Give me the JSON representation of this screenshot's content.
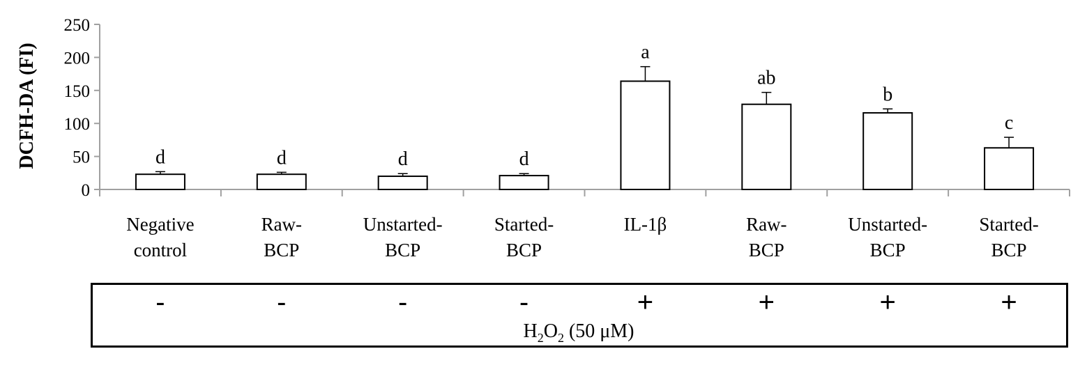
{
  "chart_data": {
    "type": "bar",
    "ylabel": "DCFH-DA (FI)",
    "ylim": [
      0,
      250
    ],
    "yticks": [
      "0",
      "50",
      "100",
      "150",
      "200",
      "250"
    ],
    "categories": [
      [
        "Negative",
        "control"
      ],
      [
        "Raw-",
        "BCP"
      ],
      [
        "Unstarted-",
        "BCP"
      ],
      [
        "Started-",
        "BCP"
      ],
      [
        "IL-1β",
        ""
      ],
      [
        "Raw-",
        "BCP"
      ],
      [
        "Unstarted-",
        "BCP"
      ],
      [
        "Started-",
        "BCP"
      ]
    ],
    "values": [
      23,
      23,
      20,
      21,
      164,
      129,
      116,
      63
    ],
    "errors": [
      4,
      3,
      4,
      3,
      22,
      18,
      6,
      16
    ],
    "significance": [
      "d",
      "d",
      "d",
      "d",
      "a",
      "ab",
      "b",
      "c"
    ],
    "treatment": {
      "signs": [
        "-",
        "-",
        "-",
        "-",
        "+",
        "+",
        "+",
        "+"
      ],
      "label_main": "H",
      "label_sub1": "2",
      "label_mid": "O",
      "label_sub2": "2",
      "label_rest": " (50 μM)"
    },
    "grid": false,
    "legend": "none",
    "colors": {
      "bar_fill": "#ffffff",
      "bar_stroke": "#000000",
      "axis": "#a0a0a0"
    }
  }
}
